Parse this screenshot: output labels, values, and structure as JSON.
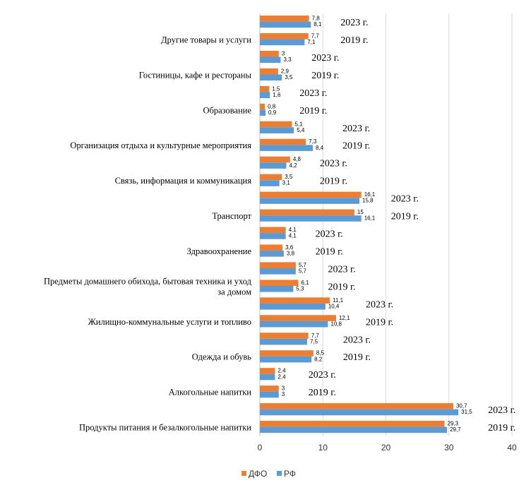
{
  "chart_data": {
    "type": "bar",
    "orientation": "horizontal",
    "xlim": [
      0,
      40
    ],
    "xticks": [
      "0",
      "10",
      "20",
      "30",
      "40"
    ],
    "grid": true,
    "legend_position": "bottom",
    "series": [
      {
        "name": "ДФО",
        "color": "#ED7D31"
      },
      {
        "name": "РФ",
        "color": "#5B9BD5"
      }
    ],
    "categories": [
      {
        "label": [
          "Продукты питания и безалкогольные напитки"
        ],
        "years": [
          {
            "year": "2023 г.",
            "dfo": 30.7,
            "rf": 31.5,
            "dfo_label": "30,7",
            "rf_label": "31,5"
          },
          {
            "year": "2019 г.",
            "dfo": 29.3,
            "rf": 29.7,
            "dfo_label": "29,3",
            "rf_label": "29,7"
          }
        ]
      },
      {
        "label": [
          "Алкогольные напитки"
        ],
        "years": [
          {
            "year": "2023 г.",
            "dfo": 2.4,
            "rf": 2.4,
            "dfo_label": "2,4",
            "rf_label": "2,4"
          },
          {
            "year": "2019 г.",
            "dfo": 3,
            "rf": 3,
            "dfo_label": "3",
            "rf_label": "3"
          }
        ]
      },
      {
        "label": [
          "Одежда и обувь"
        ],
        "years": [
          {
            "year": "2023 г.",
            "dfo": 7.7,
            "rf": 7.5,
            "dfo_label": "7,7",
            "rf_label": "7,5"
          },
          {
            "year": "2019 г.",
            "dfo": 8.5,
            "rf": 8.2,
            "dfo_label": "8,5",
            "rf_label": "8,2"
          }
        ]
      },
      {
        "label": [
          "Жилищно-коммунальные услуги и топливо"
        ],
        "years": [
          {
            "year": "2023 г.",
            "dfo": 11.1,
            "rf": 10.4,
            "dfo_label": "11,1",
            "rf_label": "10,4"
          },
          {
            "year": "2019 г.",
            "dfo": 12.1,
            "rf": 10.8,
            "dfo_label": "12,1",
            "rf_label": "10,8"
          }
        ]
      },
      {
        "label": [
          "Предметы домашнего обихода, бытовая техника и уход",
          "за домом"
        ],
        "years": [
          {
            "year": "2023 г.",
            "dfo": 5.7,
            "rf": 5.7,
            "dfo_label": "5,7",
            "rf_label": "5,7"
          },
          {
            "year": "2019 г.",
            "dfo": 6.1,
            "rf": 5.3,
            "dfo_label": "6,1",
            "rf_label": "5,3"
          }
        ]
      },
      {
        "label": [
          "Здравоохранение"
        ],
        "years": [
          {
            "year": "2023 г.",
            "dfo": 4.1,
            "rf": 4.1,
            "dfo_label": "4,1",
            "rf_label": "4,1"
          },
          {
            "year": "2019 г.",
            "dfo": 3.6,
            "rf": 3.8,
            "dfo_label": "3,6",
            "rf_label": "3,8"
          }
        ]
      },
      {
        "label": [
          "Транспорт"
        ],
        "years": [
          {
            "year": "2023 г.",
            "dfo": 16.1,
            "rf": 15.8,
            "dfo_label": "16,1",
            "rf_label": "15,8"
          },
          {
            "year": "2019 г.",
            "dfo": 15,
            "rf": 16.1,
            "dfo_label": "15",
            "rf_label": "16,1"
          }
        ]
      },
      {
        "label": [
          "Связь, информация и коммуникация"
        ],
        "years": [
          {
            "year": "2023 г.",
            "dfo": 4.8,
            "rf": 4.2,
            "dfo_label": "4,8",
            "rf_label": "4,2"
          },
          {
            "year": "2019 г.",
            "dfo": 3.5,
            "rf": 3.1,
            "dfo_label": "3,5",
            "rf_label": "3,1"
          }
        ]
      },
      {
        "label": [
          "Организация отдыха и культурные мероприятия"
        ],
        "years": [
          {
            "year": "2023 г.",
            "dfo": 5.1,
            "rf": 5.4,
            "dfo_label": "5,1",
            "rf_label": "5,4"
          },
          {
            "year": "2019 г.",
            "dfo": 7.3,
            "rf": 8.4,
            "dfo_label": "7,3",
            "rf_label": "8,4"
          }
        ]
      },
      {
        "label": [
          "Образование"
        ],
        "years": [
          {
            "year": "2023 г.",
            "dfo": 1.5,
            "rf": 1.6,
            "dfo_label": "1,5",
            "rf_label": "1,6"
          },
          {
            "year": "2019 г.",
            "dfo": 0.8,
            "rf": 0.9,
            "dfo_label": "0,8",
            "rf_label": "0,9"
          }
        ]
      },
      {
        "label": [
          "Гостиницы, кафе и рестораны"
        ],
        "years": [
          {
            "year": "2023 г.",
            "dfo": 3,
            "rf": 3.3,
            "dfo_label": "3",
            "rf_label": "3,3"
          },
          {
            "year": "2019 г.",
            "dfo": 2.9,
            "rf": 3.5,
            "dfo_label": "2,9",
            "rf_label": "3,5"
          }
        ]
      },
      {
        "label": [
          "Другие товары и услуги"
        ],
        "years": [
          {
            "year": "2023 г.",
            "dfo": 7.8,
            "rf": 8.1,
            "dfo_label": "7,8",
            "rf_label": "8,1"
          },
          {
            "year": "2019 г.",
            "dfo": 7.7,
            "rf": 7.1,
            "dfo_label": "7,7",
            "rf_label": "7,1"
          }
        ]
      }
    ]
  }
}
